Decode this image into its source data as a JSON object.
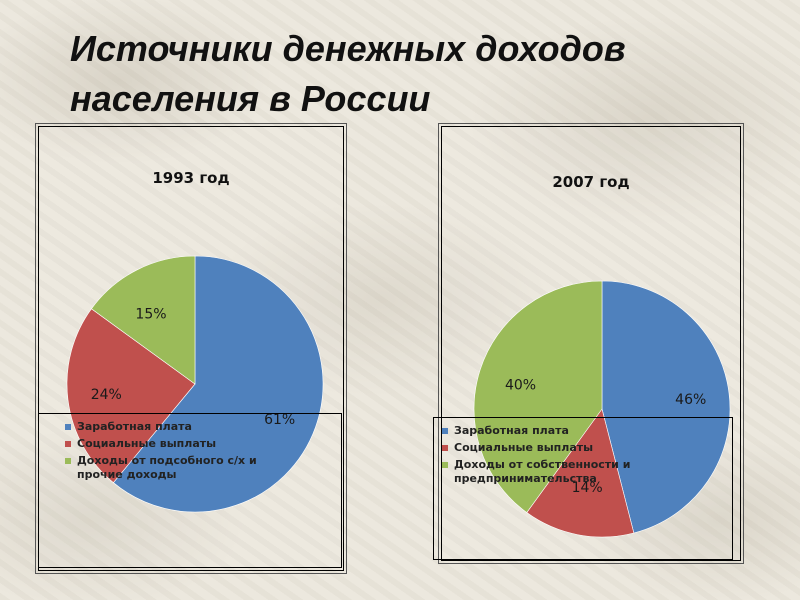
{
  "slide": {
    "title": "Источники денежных доходов населения в России"
  },
  "chart_data": [
    {
      "type": "pie",
      "title": "1993 год",
      "categories": [
        "Заработная плата",
        "Социальные выплаты",
        "Доходы от подсобного с/х и прочие доходы"
      ],
      "values": [
        61,
        24,
        15
      ],
      "labels": [
        "61%",
        "24%",
        "15%"
      ],
      "colors": [
        "#4f81bd",
        "#c0504d",
        "#9bbb59"
      ],
      "legend_position": "bottom"
    },
    {
      "type": "pie",
      "title": "2007 год",
      "categories": [
        "Заработная плата",
        "Социальные выплаты",
        "Доходы от собственности и предпринимательства"
      ],
      "values": [
        46,
        14,
        40
      ],
      "labels": [
        "46%",
        "14%",
        "40%"
      ],
      "colors": [
        "#4f81bd",
        "#c0504d",
        "#9bbb59"
      ],
      "legend_position": "bottom"
    }
  ]
}
